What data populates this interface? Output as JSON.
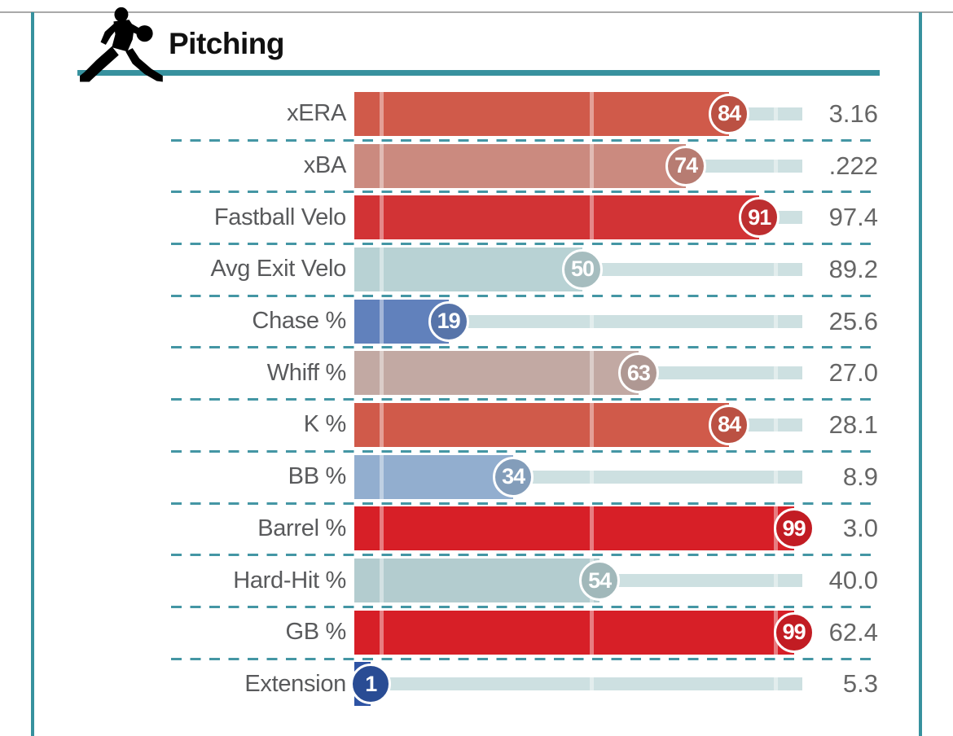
{
  "header": {
    "title": "Pitching",
    "icon": "pitcher-silhouette-icon"
  },
  "colors": {
    "accent_teal": "#37919e",
    "dash_teal": "#4496a4",
    "top_line_gray": "#a9a9a9",
    "track": "#cde0e1",
    "label_text": "#595a5c",
    "value_text": "#666666",
    "title_text": "#111111",
    "bubble_text": "#ffffff",
    "bubble_ring": "#ffffff"
  },
  "chart_data": {
    "type": "bar",
    "subtype": "percentile-sliders",
    "title": "Pitching",
    "x_axis": "percentile",
    "xlim": [
      0,
      100
    ],
    "legend": "none",
    "rows": [
      {
        "label": "xERA",
        "percentile": 84,
        "value": "3.16",
        "color": "#d05a4a"
      },
      {
        "label": "xBA",
        "percentile": 74,
        "value": ".222",
        "color": "#cb8a7f"
      },
      {
        "label": "Fastball Velo",
        "percentile": 91,
        "value": "97.4",
        "color": "#d23335"
      },
      {
        "label": "Avg Exit Velo",
        "percentile": 50,
        "value": "89.2",
        "color": "#b8d2d4"
      },
      {
        "label": "Chase %",
        "percentile": 19,
        "value": "25.6",
        "color": "#6181bc"
      },
      {
        "label": "Whiff %",
        "percentile": 63,
        "value": "27.0",
        "color": "#c2a9a3"
      },
      {
        "label": "K %",
        "percentile": 84,
        "value": "28.1",
        "color": "#d05a4a"
      },
      {
        "label": "BB %",
        "percentile": 34,
        "value": "8.9",
        "color": "#92aecf"
      },
      {
        "label": "Barrel %",
        "percentile": 99,
        "value": "3.0",
        "color": "#d71f27"
      },
      {
        "label": "Hard-Hit %",
        "percentile": 54,
        "value": "40.0",
        "color": "#b3cccf"
      },
      {
        "label": "GB %",
        "percentile": 99,
        "value": "62.4",
        "color": "#d71f27"
      },
      {
        "label": "Extension",
        "percentile": 1,
        "value": "5.3",
        "color": "#2e54a4"
      }
    ]
  }
}
